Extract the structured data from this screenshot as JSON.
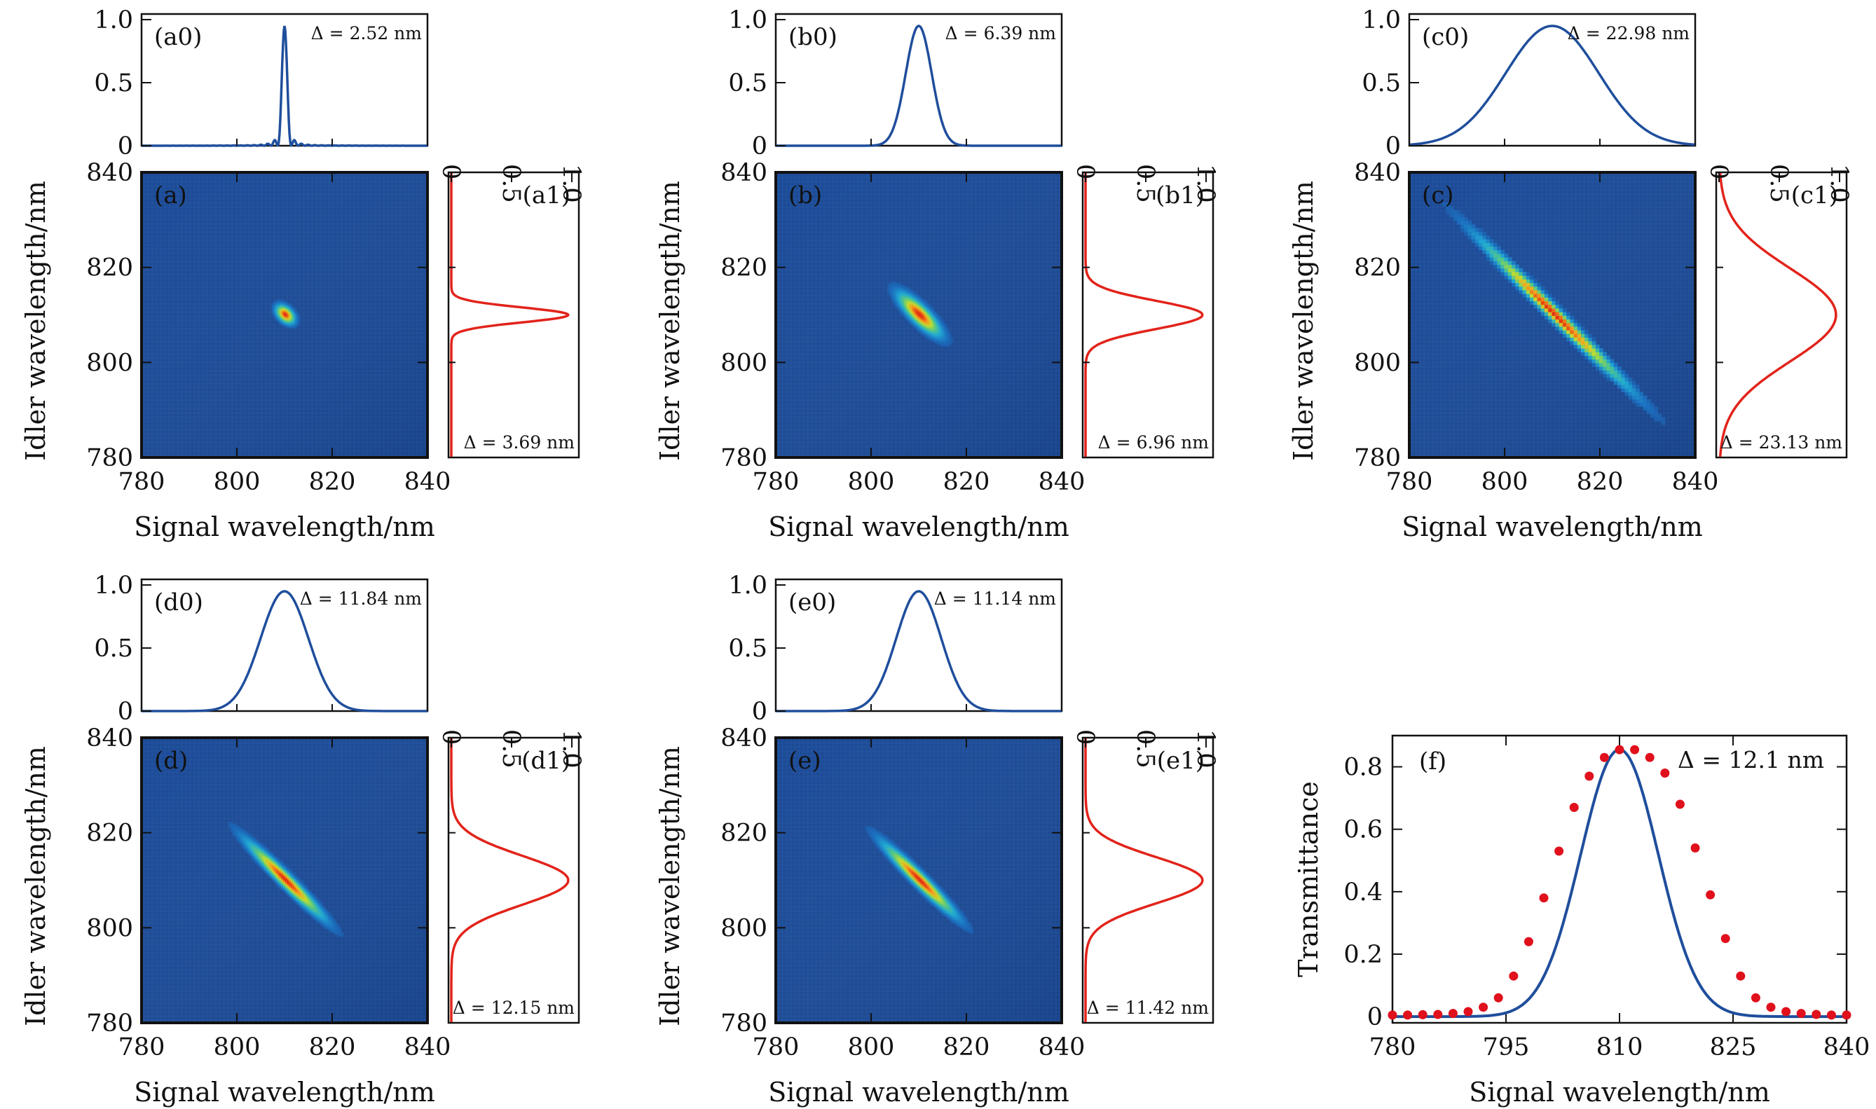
{
  "colors": {
    "jsa_background": "#1e4d9a",
    "jsa_peak": "#e02a12",
    "marginal_signal": "#1f4e9c",
    "marginal_idler": "#e2231a",
    "fit_curve": "#1f4e9c",
    "data_points": "#e0101c"
  },
  "chart_data": [
    {
      "id": "a",
      "type": "heatmap",
      "label": "(a)",
      "xlabel": "Signal wavelength/nm",
      "ylabel": "Idler wavelength/nm",
      "xlim": [
        780,
        840
      ],
      "ylim": [
        780,
        840
      ],
      "xticks": [
        "780",
        "800",
        "820",
        "840"
      ],
      "yticks": [
        "780",
        "800",
        "820",
        "840"
      ],
      "center": [
        810,
        810
      ],
      "signal_fwhm_nm": 2.52,
      "idler_fwhm_nm": 3.69,
      "anti_diagonal_fwhm_nm": 3.2,
      "signal_marginal": {
        "label": "(a0)",
        "delta": "Δ = 2.52 nm",
        "ylim": [
          0,
          1
        ],
        "yticks": [
          "0",
          "0.5",
          "1.0"
        ],
        "peak": 0.95,
        "sidelobes": true
      },
      "idler_marginal": {
        "label": "(a1)",
        "delta": "Δ = 3.69 nm",
        "xlim": [
          0,
          1
        ],
        "xticks": [
          "0",
          "0.5",
          "1.0"
        ],
        "peak": 0.97
      }
    },
    {
      "id": "b",
      "type": "heatmap",
      "label": "(b)",
      "xlabel": "Signal wavelength/nm",
      "ylabel": "Idler wavelength/nm",
      "xlim": [
        780,
        840
      ],
      "ylim": [
        780,
        840
      ],
      "xticks": [
        "780",
        "800",
        "820",
        "840"
      ],
      "yticks": [
        "780",
        "800",
        "820",
        "840"
      ],
      "center": [
        810,
        810
      ],
      "signal_fwhm_nm": 6.39,
      "idler_fwhm_nm": 6.96,
      "anti_diagonal_fwhm_nm": 4.0,
      "signal_marginal": {
        "label": "(b0)",
        "delta": "Δ = 6.39 nm",
        "ylim": [
          0,
          1
        ],
        "yticks": [
          "0",
          "0.5",
          "1.0"
        ],
        "peak": 0.95
      },
      "idler_marginal": {
        "label": "(b1)",
        "delta": "Δ = 6.96 nm",
        "xlim": [
          0,
          1
        ],
        "xticks": [
          "0",
          "0.5",
          "1.0"
        ],
        "peak": 0.97
      }
    },
    {
      "id": "c",
      "type": "heatmap",
      "label": "(c)",
      "xlabel": "Signal wavelength/nm",
      "ylabel": "Idler wavelength/nm",
      "xlim": [
        780,
        840
      ],
      "ylim": [
        780,
        840
      ],
      "xticks": [
        "780",
        "800",
        "820",
        "840"
      ],
      "yticks": [
        "780",
        "800",
        "820",
        "840"
      ],
      "center": [
        810,
        810
      ],
      "signal_fwhm_nm": 22.98,
      "idler_fwhm_nm": 23.13,
      "anti_diagonal_fwhm_nm": 3.0,
      "signal_marginal": {
        "label": "(c0)",
        "delta": "Δ = 22.98 nm",
        "ylim": [
          0,
          1
        ],
        "yticks": [
          "0",
          "0.5",
          "1.0"
        ],
        "peak": 0.95
      },
      "idler_marginal": {
        "label": "(c1)",
        "delta": "Δ = 23.13 nm",
        "xlim": [
          0,
          1
        ],
        "xticks": [
          "0",
          "0.5",
          "1.0"
        ],
        "peak": 0.97
      }
    },
    {
      "id": "d",
      "type": "heatmap",
      "label": "(d)",
      "xlabel": "Signal wavelength/nm",
      "ylabel": "Idler wavelength/nm",
      "xlim": [
        780,
        840
      ],
      "ylim": [
        780,
        840
      ],
      "xticks": [
        "780",
        "800",
        "820",
        "840"
      ],
      "yticks": [
        "780",
        "800",
        "820",
        "840"
      ],
      "center": [
        810,
        810
      ],
      "signal_fwhm_nm": 11.84,
      "idler_fwhm_nm": 12.15,
      "anti_diagonal_fwhm_nm": 3.0,
      "signal_marginal": {
        "label": "(d0)",
        "delta": "Δ = 11.84 nm",
        "ylim": [
          0,
          1
        ],
        "yticks": [
          "0",
          "0.5",
          "1.0"
        ],
        "peak": 0.95
      },
      "idler_marginal": {
        "label": "(d1)",
        "delta": "Δ = 12.15 nm",
        "xlim": [
          0,
          1
        ],
        "xticks": [
          "0",
          "0.5",
          "1.0"
        ],
        "peak": 0.97
      }
    },
    {
      "id": "e",
      "type": "heatmap",
      "label": "(e)",
      "xlabel": "Signal wavelength/nm",
      "ylabel": "Idler wavelength/nm",
      "xlim": [
        780,
        840
      ],
      "ylim": [
        780,
        840
      ],
      "xticks": [
        "780",
        "800",
        "820",
        "840"
      ],
      "yticks": [
        "780",
        "800",
        "820",
        "840"
      ],
      "center": [
        810,
        810
      ],
      "signal_fwhm_nm": 11.14,
      "idler_fwhm_nm": 11.42,
      "anti_diagonal_fwhm_nm": 3.0,
      "signal_marginal": {
        "label": "(e0)",
        "delta": "Δ = 11.14 nm",
        "ylim": [
          0,
          1
        ],
        "yticks": [
          "0",
          "0.5",
          "1.0"
        ],
        "peak": 0.95
      },
      "idler_marginal": {
        "label": "(e1)",
        "delta": "Δ = 11.42 nm",
        "xlim": [
          0,
          1
        ],
        "xticks": [
          "0",
          "0.5",
          "1.0"
        ],
        "peak": 0.97
      }
    },
    {
      "id": "f",
      "type": "line",
      "label": "(f)",
      "delta": "Δ = 12.1 nm",
      "xlabel": "Signal wavelength/nm",
      "ylabel": "Transmittance",
      "xlim": [
        780,
        840
      ],
      "ylim": [
        -0.02,
        0.9
      ],
      "xticks": [
        "780",
        "795",
        "810",
        "825",
        "840"
      ],
      "yticks": [
        "0",
        "0.2",
        "0.4",
        "0.6",
        "0.8"
      ],
      "series": [
        {
          "style": "markers",
          "x": [
            780,
            782,
            784,
            786,
            788,
            790,
            792,
            794,
            796,
            798,
            800,
            802,
            804,
            806,
            808,
            810,
            812,
            814,
            816,
            818,
            820,
            822,
            824,
            826,
            828,
            830,
            832,
            834,
            836,
            838,
            840
          ],
          "y": [
            0.005,
            0.005,
            0.006,
            0.007,
            0.01,
            0.016,
            0.03,
            0.06,
            0.13,
            0.24,
            0.38,
            0.53,
            0.67,
            0.77,
            0.83,
            0.855,
            0.855,
            0.83,
            0.78,
            0.68,
            0.54,
            0.39,
            0.25,
            0.13,
            0.06,
            0.03,
            0.016,
            0.01,
            0.007,
            0.005,
            0.005
          ]
        },
        {
          "style": "fit",
          "center": 810,
          "fwhm_nm": 12.1,
          "peak": 0.855
        }
      ]
    }
  ]
}
